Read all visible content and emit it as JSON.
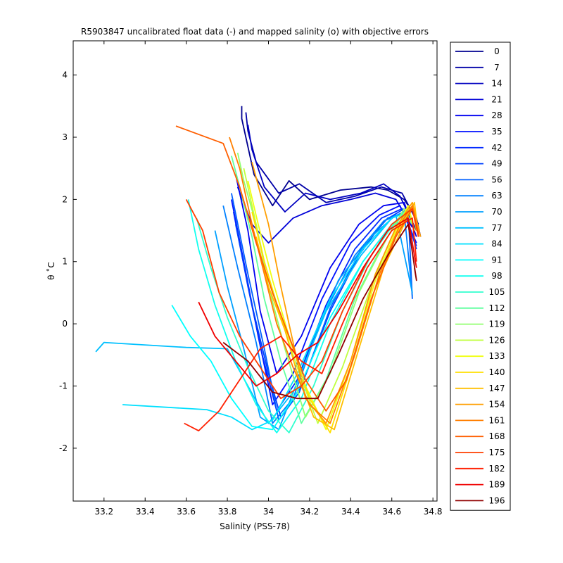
{
  "chart_data": {
    "type": "line",
    "title": "R5903847 uncalibrated float data (-) and mapped salinity (o) with objective errors",
    "xlabel": "Salinity (PSS-78)",
    "ylabel": "θ ˚C",
    "xlim": [
      33.05,
      34.82
    ],
    "ylim": [
      -2.85,
      4.55
    ],
    "xticks": [
      "33.2",
      "33.4",
      "33.6",
      "33.8",
      "34",
      "34.2",
      "34.4",
      "34.6",
      "34.8"
    ],
    "yticks": [
      "-2",
      "-1",
      "0",
      "1",
      "2",
      "3",
      "4"
    ],
    "grid": false,
    "legend_position": "outside-right",
    "series": [
      {
        "name": "0",
        "color": "#000090",
        "x": [
          33.87,
          33.87,
          33.93,
          34.02,
          34.1,
          34.2,
          34.35,
          34.5,
          34.58,
          34.66,
          34.72,
          34.74
        ],
        "y": [
          3.5,
          3.3,
          2.4,
          1.9,
          2.3,
          2.0,
          2.15,
          2.2,
          2.15,
          2.0,
          1.7,
          1.4
        ]
      },
      {
        "name": "7",
        "color": "#0000A8",
        "x": [
          33.89,
          33.9,
          33.94,
          34.05,
          34.15,
          34.28,
          34.42,
          34.55,
          34.65,
          34.73
        ],
        "y": [
          3.4,
          3.1,
          2.6,
          2.1,
          2.25,
          1.95,
          2.05,
          2.2,
          2.1,
          1.6
        ]
      },
      {
        "name": "14",
        "color": "#0000C0",
        "x": [
          33.9,
          33.92,
          33.98,
          34.08,
          34.18,
          34.3,
          34.45,
          34.56,
          34.64,
          34.72
        ],
        "y": [
          3.2,
          2.8,
          2.2,
          1.8,
          2.1,
          2.0,
          2.1,
          2.25,
          2.05,
          1.5
        ]
      },
      {
        "name": "21",
        "color": "#0000D8",
        "x": [
          33.85,
          33.92,
          34.0,
          34.12,
          34.26,
          34.4,
          34.52,
          34.62,
          34.7
        ],
        "y": [
          2.2,
          1.6,
          1.3,
          1.7,
          1.9,
          2.0,
          2.1,
          2.0,
          1.55
        ]
      },
      {
        "name": "28",
        "color": "#0000F0",
        "x": [
          33.84,
          33.9,
          33.96,
          34.04,
          34.16,
          34.3,
          34.44,
          34.56,
          34.66,
          34.72
        ],
        "y": [
          2.4,
          1.5,
          0.2,
          -0.8,
          -0.2,
          0.9,
          1.6,
          1.9,
          1.95,
          1.4
        ]
      },
      {
        "name": "35",
        "color": "#0010FF",
        "x": [
          33.82,
          33.88,
          33.95,
          34.02,
          34.12,
          34.26,
          34.4,
          34.54,
          34.64,
          34.72
        ],
        "y": [
          2.0,
          1.0,
          -0.2,
          -1.3,
          -0.8,
          0.4,
          1.3,
          1.75,
          1.9,
          1.3
        ]
      },
      {
        "name": "42",
        "color": "#0028FF",
        "x": [
          33.83,
          33.9,
          33.97,
          34.04,
          34.14,
          34.28,
          34.42,
          34.55,
          34.65,
          34.72
        ],
        "y": [
          1.8,
          0.6,
          -0.5,
          -1.4,
          -0.9,
          0.3,
          1.2,
          1.7,
          1.85,
          1.25
        ]
      },
      {
        "name": "49",
        "color": "#0040FF",
        "x": [
          33.84,
          33.92,
          34.0,
          34.06,
          34.16,
          34.3,
          34.44,
          34.56,
          34.66,
          34.72
        ],
        "y": [
          1.6,
          0.3,
          -0.8,
          -1.5,
          -1.0,
          0.2,
          1.1,
          1.65,
          1.85,
          1.2
        ]
      },
      {
        "name": "56",
        "color": "#0060FF",
        "x": [
          33.82,
          33.9,
          33.98,
          34.05,
          34.15,
          34.3,
          34.45,
          34.58,
          34.68,
          34.7
        ],
        "y": [
          2.1,
          0.8,
          -0.4,
          -1.55,
          -1.1,
          0.25,
          1.2,
          1.7,
          1.8,
          0.4
        ]
      },
      {
        "name": "63",
        "color": "#0080FF",
        "x": [
          33.78,
          33.85,
          33.94,
          34.02,
          34.12,
          34.26,
          34.42,
          34.56,
          34.66,
          34.7
        ],
        "y": [
          1.9,
          0.9,
          -0.3,
          -1.6,
          -1.2,
          0.1,
          1.1,
          1.65,
          1.8,
          0.45
        ]
      },
      {
        "name": "70",
        "color": "#00A0FF",
        "x": [
          33.74,
          33.8,
          33.88,
          33.96,
          34.05,
          34.18,
          34.34,
          34.5,
          34.62,
          34.7
        ],
        "y": [
          1.5,
          0.6,
          -0.4,
          -1.5,
          -1.7,
          -0.6,
          0.7,
          1.4,
          1.75,
          0.5
        ]
      },
      {
        "name": "77",
        "color": "#00C0FF",
        "x": [
          33.16,
          33.2,
          33.6,
          33.8,
          33.9,
          34.0,
          34.12,
          34.28,
          34.45,
          34.6,
          34.68
        ],
        "y": [
          -0.45,
          -0.3,
          -0.38,
          -0.4,
          -1.0,
          -1.6,
          -1.1,
          0.2,
          1.1,
          1.7,
          1.8
        ]
      },
      {
        "name": "84",
        "color": "#00E0FF",
        "x": [
          33.29,
          33.7,
          33.82,
          33.92,
          34.02,
          34.14,
          34.3,
          34.46,
          34.6,
          34.68
        ],
        "y": [
          -1.3,
          -1.38,
          -1.5,
          -1.7,
          -1.55,
          -0.8,
          0.4,
          1.2,
          1.7,
          1.8
        ]
      },
      {
        "name": "91",
        "color": "#00FFFF",
        "x": [
          33.53,
          33.62,
          33.72,
          33.82,
          33.92,
          34.02,
          34.14,
          34.3,
          34.46,
          34.6,
          34.68
        ],
        "y": [
          0.3,
          -0.2,
          -0.6,
          -1.2,
          -1.65,
          -1.7,
          -1.1,
          0.1,
          1.0,
          1.6,
          1.8
        ]
      },
      {
        "name": "98",
        "color": "#10FFEF",
        "x": [
          33.61,
          33.66,
          33.74,
          33.84,
          33.94,
          34.04,
          34.16,
          34.3,
          34.46,
          34.6,
          34.68
        ],
        "y": [
          2.0,
          1.2,
          0.3,
          -0.6,
          -1.3,
          -1.75,
          -1.2,
          0.0,
          1.0,
          1.6,
          1.8
        ]
      },
      {
        "name": "105",
        "color": "#30FFCF",
        "x": [
          33.65,
          33.72,
          33.8,
          33.9,
          34.0,
          34.1,
          34.22,
          34.36,
          34.5,
          34.62,
          34.68
        ],
        "y": [
          1.7,
          0.9,
          0.1,
          -0.7,
          -1.4,
          -1.75,
          -1.0,
          0.2,
          1.1,
          1.65,
          1.8
        ]
      },
      {
        "name": "112",
        "color": "#60FF9F",
        "x": [
          33.82,
          33.86,
          33.92,
          33.98,
          34.06,
          34.16,
          34.28,
          34.42,
          34.56,
          34.66,
          34.7
        ],
        "y": [
          2.7,
          2.2,
          1.4,
          0.4,
          -0.6,
          -1.6,
          -0.9,
          0.4,
          1.3,
          1.8,
          1.6
        ]
      },
      {
        "name": "119",
        "color": "#90FF6F",
        "x": [
          33.85,
          33.88,
          33.94,
          34.0,
          34.08,
          34.18,
          34.3,
          34.44,
          34.58,
          34.66,
          34.7
        ],
        "y": [
          2.75,
          2.3,
          1.6,
          0.6,
          -0.4,
          -1.5,
          -0.8,
          0.5,
          1.4,
          1.85,
          1.6
        ]
      },
      {
        "name": "126",
        "color": "#C0FF3F",
        "x": [
          33.88,
          33.92,
          33.98,
          34.06,
          34.14,
          34.24,
          34.36,
          34.5,
          34.6,
          34.68,
          34.71
        ],
        "y": [
          2.5,
          1.9,
          1.0,
          0.1,
          -0.7,
          -1.6,
          -0.7,
          0.6,
          1.4,
          1.85,
          1.5
        ]
      },
      {
        "name": "133",
        "color": "#F0FF0F",
        "x": [
          33.9,
          33.95,
          34.02,
          34.1,
          34.18,
          34.28,
          34.4,
          34.52,
          34.62,
          34.68,
          34.71
        ],
        "y": [
          2.3,
          1.6,
          0.7,
          -0.2,
          -1.0,
          -1.7,
          -0.6,
          0.7,
          1.5,
          1.9,
          1.5
        ]
      },
      {
        "name": "140",
        "color": "#FFDF00",
        "x": [
          33.92,
          33.98,
          34.04,
          34.12,
          34.2,
          34.3,
          34.42,
          34.54,
          34.64,
          34.7,
          34.72
        ],
        "y": [
          1.8,
          1.0,
          0.3,
          -0.4,
          -1.2,
          -1.75,
          -0.5,
          0.8,
          1.55,
          1.9,
          1.5
        ]
      },
      {
        "name": "147",
        "color": "#FFBF00",
        "x": [
          33.94,
          34.0,
          34.08,
          34.14,
          34.22,
          34.32,
          34.44,
          34.56,
          34.66,
          34.71,
          34.73
        ],
        "y": [
          1.4,
          0.6,
          -0.1,
          -0.8,
          -1.5,
          -1.7,
          -0.4,
          0.9,
          1.6,
          1.95,
          1.4
        ]
      },
      {
        "name": "154",
        "color": "#FF9F00",
        "x": [
          33.92,
          34.0,
          34.06,
          34.12,
          34.18,
          34.28,
          34.4,
          34.52,
          34.62,
          34.7,
          34.74
        ],
        "y": [
          2.6,
          1.6,
          0.6,
          -0.3,
          -1.2,
          -1.6,
          -0.6,
          0.8,
          1.55,
          1.95,
          1.4
        ]
      },
      {
        "name": "161",
        "color": "#FF7F00",
        "x": [
          33.81,
          33.86,
          33.92,
          33.98,
          34.04,
          34.12,
          34.2,
          34.3,
          34.42,
          34.54,
          34.64,
          34.7,
          34.73
        ],
        "y": [
          3.0,
          2.5,
          1.6,
          0.8,
          0.0,
          -0.7,
          -1.3,
          -1.6,
          -0.5,
          0.8,
          1.6,
          1.9,
          1.4
        ]
      },
      {
        "name": "168",
        "color": "#FF5F00",
        "x": [
          33.55,
          33.78,
          33.86,
          33.94,
          34.02,
          34.1,
          34.18,
          34.28,
          34.38,
          34.5,
          34.62,
          34.7,
          34.73
        ],
        "y": [
          3.18,
          2.9,
          2.2,
          1.3,
          0.5,
          -0.2,
          -0.9,
          -1.4,
          -0.9,
          0.4,
          1.4,
          1.85,
          1.45
        ]
      },
      {
        "name": "175",
        "color": "#FF3F00",
        "x": [
          33.6,
          33.68,
          33.76,
          33.86,
          33.96,
          34.06,
          34.16,
          34.26,
          34.36,
          34.48,
          34.6,
          34.7,
          34.73
        ],
        "y": [
          2.0,
          1.5,
          0.5,
          -0.2,
          -0.7,
          -1.2,
          -1.0,
          -0.6,
          0.2,
          1.0,
          1.6,
          1.85,
          1.4
        ]
      },
      {
        "name": "182",
        "color": "#FF1F00",
        "x": [
          33.59,
          33.66,
          33.76,
          33.86,
          33.96,
          34.06,
          34.16,
          34.26,
          34.36,
          34.48,
          34.6,
          34.7,
          34.72
        ],
        "y": [
          -1.6,
          -1.72,
          -1.4,
          -0.9,
          -0.4,
          -0.2,
          -0.6,
          -0.8,
          0.0,
          0.9,
          1.5,
          1.7,
          1.0
        ]
      },
      {
        "name": "189",
        "color": "#F00000",
        "x": [
          33.66,
          33.74,
          33.84,
          33.94,
          34.04,
          34.14,
          34.24,
          34.34,
          34.46,
          34.58,
          34.68,
          34.72
        ],
        "y": [
          0.35,
          -0.2,
          -0.6,
          -1.0,
          -0.8,
          -0.5,
          -0.3,
          0.2,
          0.9,
          1.5,
          1.7,
          0.9
        ]
      },
      {
        "name": "196",
        "color": "#900000",
        "x": [
          33.78,
          33.9,
          34.02,
          34.14,
          34.24,
          34.34,
          34.46,
          34.58,
          34.68,
          34.72,
          34.71
        ],
        "y": [
          -0.3,
          -0.6,
          -1.1,
          -1.2,
          -1.2,
          -0.5,
          0.4,
          1.1,
          1.6,
          0.7,
          0.9
        ]
      }
    ]
  }
}
